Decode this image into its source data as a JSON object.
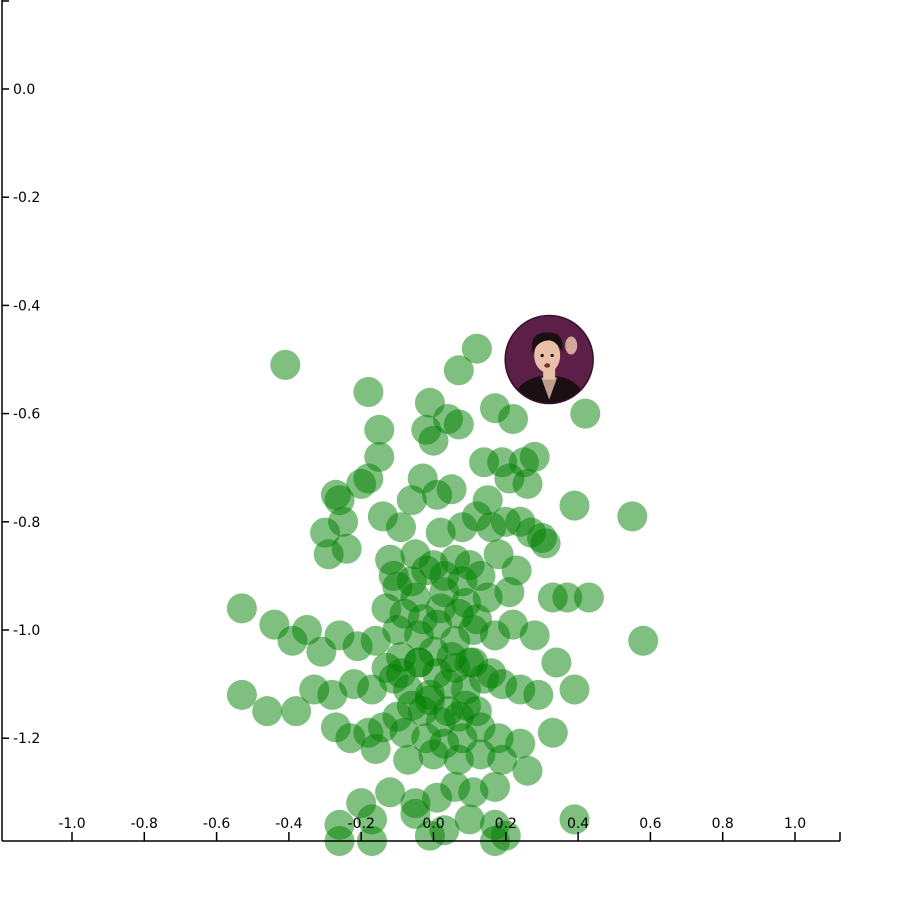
{
  "chart_data": {
    "type": "scatter",
    "title": "",
    "xlabel": "",
    "ylabel": "",
    "xlim": [
      -1.2,
      1.13
    ],
    "ylim": [
      -1.4,
      0.16
    ],
    "grid": false,
    "legend": "none",
    "x_ticks": [
      -1.0,
      -0.8,
      -0.6,
      -0.4,
      -0.2,
      0.0,
      0.2,
      0.4,
      0.6,
      0.8,
      1.0
    ],
    "y_ticks": [
      0.0,
      -0.2,
      -0.4,
      -0.6,
      -0.8,
      -1.0,
      -1.2
    ],
    "x_tick_labels": [
      "-1.0",
      "-0.8",
      "-0.6",
      "-0.4",
      "-0.2",
      "0.0",
      "0.2",
      "0.4",
      "0.6",
      "0.8",
      "1.0"
    ],
    "y_tick_labels": [
      "0.0",
      "-0.2",
      "-0.4",
      "-0.6",
      "-0.8",
      "-1.0",
      "-1.2"
    ],
    "series": [
      {
        "color": "#008000",
        "x": [
          -0.41,
          -0.18,
          0.12,
          0.07,
          0.17,
          0.22,
          -0.01,
          0.04,
          0.07,
          -0.15,
          -0.02,
          0.0,
          -0.15,
          0.14,
          0.19,
          0.25,
          0.28,
          -0.03,
          -0.18,
          -0.2,
          -0.27,
          -0.26,
          -0.3,
          -0.06,
          0.01,
          0.05,
          0.15,
          0.21,
          0.26,
          0.39,
          0.55,
          0.42,
          0.24,
          0.3,
          -0.25,
          -0.14,
          -0.09,
          0.02,
          0.08,
          0.12,
          0.16,
          0.2,
          0.27,
          0.31,
          -0.29,
          -0.24,
          -0.12,
          -0.05,
          0.0,
          0.06,
          0.1,
          0.18,
          0.23,
          -0.53,
          -0.44,
          -0.39,
          -0.35,
          -0.31,
          -0.26,
          -0.21,
          -0.16,
          -0.1,
          -0.04,
          0.01,
          0.06,
          0.11,
          0.17,
          0.22,
          0.28,
          0.33,
          0.37,
          0.43,
          0.58,
          -0.53,
          -0.46,
          -0.38,
          -0.33,
          -0.28,
          -0.22,
          -0.17,
          -0.11,
          -0.07,
          -0.01,
          0.04,
          0.09,
          0.14,
          0.19,
          0.24,
          0.29,
          0.34,
          0.39,
          -0.27,
          -0.23,
          -0.18,
          -0.14,
          -0.08,
          -0.02,
          0.03,
          0.08,
          0.13,
          0.18,
          0.24,
          0.33,
          -0.16,
          -0.07,
          0.0,
          0.07,
          0.13,
          0.19,
          0.26,
          -0.2,
          -0.12,
          -0.05,
          0.01,
          0.06,
          0.11,
          0.17,
          -0.26,
          -0.17,
          -0.05,
          0.03,
          0.1,
          0.17,
          0.39,
          -0.26,
          -0.17,
          -0.01,
          0.17,
          0.2,
          -0.1,
          -0.05,
          0.03,
          0.09,
          0.15,
          0.21,
          -0.13,
          -0.08,
          -0.03,
          0.02,
          0.07,
          0.12,
          -0.09,
          -0.04,
          0.0,
          0.05,
          0.1,
          -0.06,
          -0.01,
          0.04,
          0.09,
          -0.11,
          -0.06,
          -0.02,
          0.03,
          0.08,
          0.13,
          -0.13,
          -0.09,
          -0.04,
          0.01,
          0.06,
          0.11,
          0.16,
          -0.1,
          -0.03,
          0.02,
          0.07,
          0.12
        ],
        "y": [
          -0.51,
          -0.56,
          -0.48,
          -0.52,
          -0.59,
          -0.61,
          -0.58,
          -0.61,
          -0.62,
          -0.63,
          -0.63,
          -0.65,
          -0.68,
          -0.69,
          -0.69,
          -0.69,
          -0.68,
          -0.72,
          -0.72,
          -0.73,
          -0.75,
          -0.76,
          -0.82,
          -0.76,
          -0.75,
          -0.74,
          -0.76,
          -0.72,
          -0.73,
          -0.77,
          -0.79,
          -0.6,
          -0.8,
          -0.83,
          -0.8,
          -0.79,
          -0.81,
          -0.82,
          -0.81,
          -0.79,
          -0.81,
          -0.8,
          -0.82,
          -0.84,
          -0.86,
          -0.85,
          -0.87,
          -0.86,
          -0.88,
          -0.87,
          -0.88,
          -0.86,
          -0.89,
          -0.96,
          -0.99,
          -1.02,
          -1.0,
          -1.04,
          -1.01,
          -1.03,
          -1.02,
          -1.0,
          -1.01,
          -0.99,
          -1.02,
          -1.0,
          -1.01,
          -0.99,
          -1.01,
          -0.94,
          -0.94,
          -0.94,
          -1.02,
          -1.12,
          -1.15,
          -1.15,
          -1.11,
          -1.12,
          -1.1,
          -1.11,
          -1.09,
          -1.11,
          -1.12,
          -1.1,
          -1.11,
          -1.09,
          -1.1,
          -1.11,
          -1.12,
          -1.06,
          -1.11,
          -1.18,
          -1.2,
          -1.19,
          -1.18,
          -1.19,
          -1.2,
          -1.21,
          -1.2,
          -1.18,
          -1.2,
          -1.21,
          -1.19,
          -1.22,
          -1.24,
          -1.23,
          -1.24,
          -1.23,
          -1.24,
          -1.26,
          -1.32,
          -1.3,
          -1.32,
          -1.31,
          -1.29,
          -1.3,
          -1.29,
          -1.36,
          -1.35,
          -1.34,
          -1.37,
          -1.35,
          -1.36,
          -1.35,
          -1.39,
          -1.39,
          -1.38,
          -1.39,
          -1.38,
          -0.92,
          -0.94,
          -0.93,
          -0.95,
          -0.94,
          -0.93,
          -0.96,
          -0.97,
          -0.98,
          -0.96,
          -0.97,
          -0.98,
          -1.05,
          -1.06,
          -1.04,
          -1.05,
          -1.06,
          -1.14,
          -1.13,
          -1.15,
          -1.14,
          -0.9,
          -0.91,
          -0.89,
          -0.9,
          -0.91,
          -0.9,
          -1.07,
          -1.08,
          -1.06,
          -1.08,
          -1.07,
          -1.06,
          -1.08,
          -1.16,
          -1.15,
          -1.17,
          -1.16,
          -1.15
        ]
      }
    ]
  },
  "highlight_marker": {
    "icon": "portrait-avatar-icon",
    "x": 0.32,
    "y": -0.5,
    "frame_color": "#3a1030",
    "bg_color": "#7a2a5a",
    "skin_color": "#e8c0a8",
    "hair_color": "#1a1014"
  }
}
